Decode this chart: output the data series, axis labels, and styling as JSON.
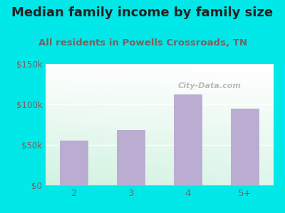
{
  "title": "Median family income by family size",
  "subtitle": "All residents in Powells Crossroads, TN",
  "categories": [
    "2",
    "3",
    "4",
    "5+"
  ],
  "values": [
    55000,
    68000,
    112000,
    95000
  ],
  "bar_color": "#bbadd1",
  "ylim": [
    0,
    150000
  ],
  "yticks": [
    0,
    50000,
    100000,
    150000
  ],
  "ytick_labels": [
    "$0",
    "$50k",
    "$100k",
    "$150k"
  ],
  "title_fontsize": 13,
  "subtitle_fontsize": 9.5,
  "title_color": "#222222",
  "subtitle_color": "#7a6060",
  "tick_color": "#7a6060",
  "outer_bg": "#00e8e8",
  "watermark": "City-Data.com",
  "grid_color": "#cccccc"
}
